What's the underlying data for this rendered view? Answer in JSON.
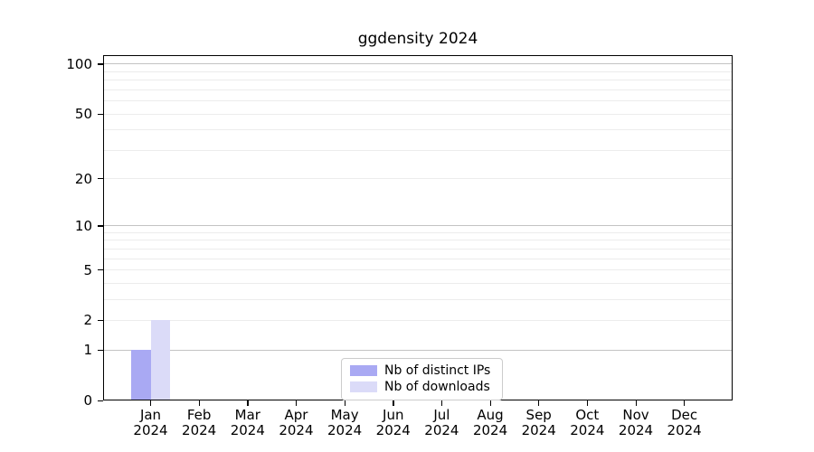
{
  "chart_data": {
    "type": "bar",
    "title": "ggdensity 2024",
    "categories": [
      "Jan",
      "Feb",
      "Mar",
      "Apr",
      "May",
      "Jun",
      "Jul",
      "Aug",
      "Sep",
      "Oct",
      "Nov",
      "Dec"
    ],
    "year_label": "2024",
    "series": [
      {
        "name": "Nb of distinct IPs",
        "color": "#a9a9f3",
        "values": [
          1,
          0,
          0,
          0,
          0,
          0,
          0,
          0,
          0,
          0,
          0,
          0
        ]
      },
      {
        "name": "Nb of downloads",
        "color": "#dbdbf8",
        "values": [
          2,
          0,
          0,
          0,
          0,
          0,
          0,
          0,
          0,
          0,
          0,
          0
        ]
      }
    ],
    "xlabel": "",
    "ylabel": "",
    "y_scale": "log10(value+1)",
    "y_tick_labels": [
      0,
      1,
      2,
      5,
      10,
      20,
      50,
      100
    ],
    "y_major_gridlines": [
      1,
      10,
      100
    ],
    "y_minor_gridlines": [
      2,
      3,
      4,
      5,
      6,
      7,
      8,
      9,
      20,
      30,
      40,
      50,
      60,
      70,
      80,
      90
    ],
    "ylim": [
      0,
      113
    ],
    "grid": "horizontal",
    "legend_position": "bottom-center",
    "colors": {
      "major_gridline": "#c3c3c3",
      "minor_gridline": "#ececec",
      "axis": "#000000",
      "legend_border": "#cccccc",
      "background": "#ffffff"
    }
  }
}
